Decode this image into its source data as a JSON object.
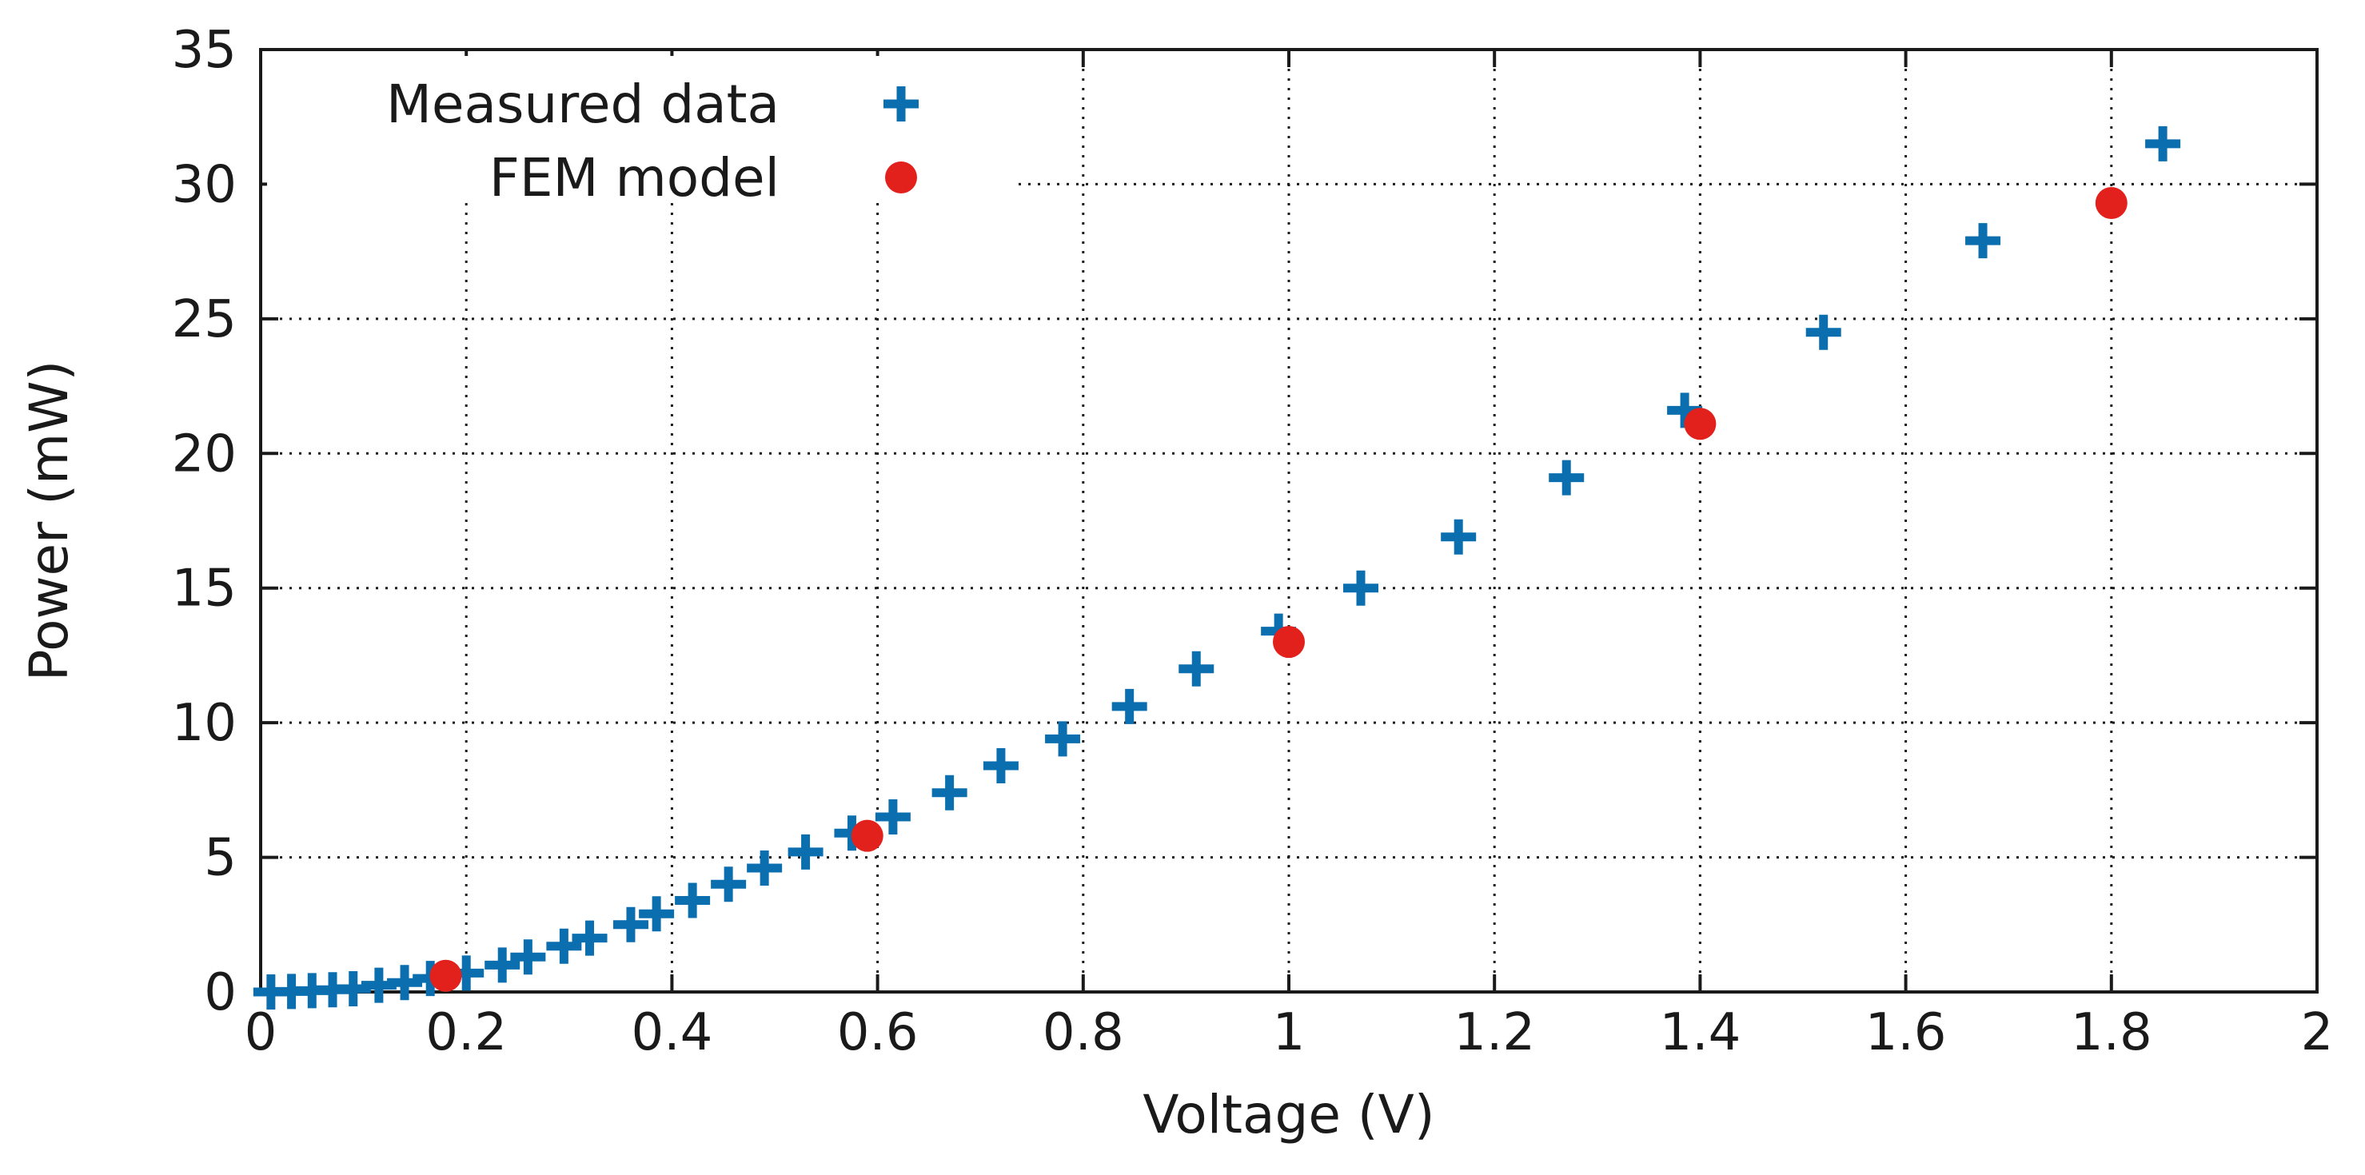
{
  "chart_data": {
    "type": "scatter",
    "title": "",
    "xlabel": "Voltage (V)",
    "ylabel": "Power (mW)",
    "xlim": [
      0,
      2
    ],
    "ylim": [
      0,
      35
    ],
    "x_ticks": [
      "0",
      "0.2",
      "0.4",
      "0.6",
      "0.8",
      "1",
      "1.2",
      "1.4",
      "1.6",
      "1.8",
      "2"
    ],
    "y_ticks": [
      "0",
      "5",
      "10",
      "15",
      "20",
      "25",
      "30",
      "35"
    ],
    "grid": true,
    "legend_position": "top-left",
    "series": [
      {
        "name": "Measured data",
        "marker": "plus",
        "color": "#0a6eaf",
        "x": [
          0.01,
          0.03,
          0.05,
          0.07,
          0.09,
          0.115,
          0.14,
          0.165,
          0.2,
          0.235,
          0.26,
          0.295,
          0.32,
          0.36,
          0.385,
          0.42,
          0.455,
          0.49,
          0.53,
          0.575,
          0.615,
          0.67,
          0.72,
          0.78,
          0.845,
          0.91,
          0.99,
          1.07,
          1.165,
          1.27,
          1.385,
          1.52,
          1.675,
          1.85
        ],
        "y": [
          0,
          0.02,
          0.05,
          0.08,
          0.12,
          0.25,
          0.35,
          0.5,
          0.7,
          1.0,
          1.3,
          1.7,
          2.0,
          2.5,
          2.9,
          3.4,
          4.0,
          4.6,
          5.2,
          5.9,
          6.5,
          7.4,
          8.4,
          9.4,
          10.6,
          12.0,
          13.4,
          15.0,
          16.9,
          19.1,
          21.6,
          24.5,
          27.9,
          31.5
        ]
      },
      {
        "name": "FEM model",
        "marker": "circle",
        "color": "#e3211c",
        "x": [
          0.18,
          0.59,
          1.0,
          1.4,
          1.8
        ],
        "y": [
          0.6,
          5.8,
          13.0,
          21.1,
          29.3
        ]
      }
    ]
  }
}
